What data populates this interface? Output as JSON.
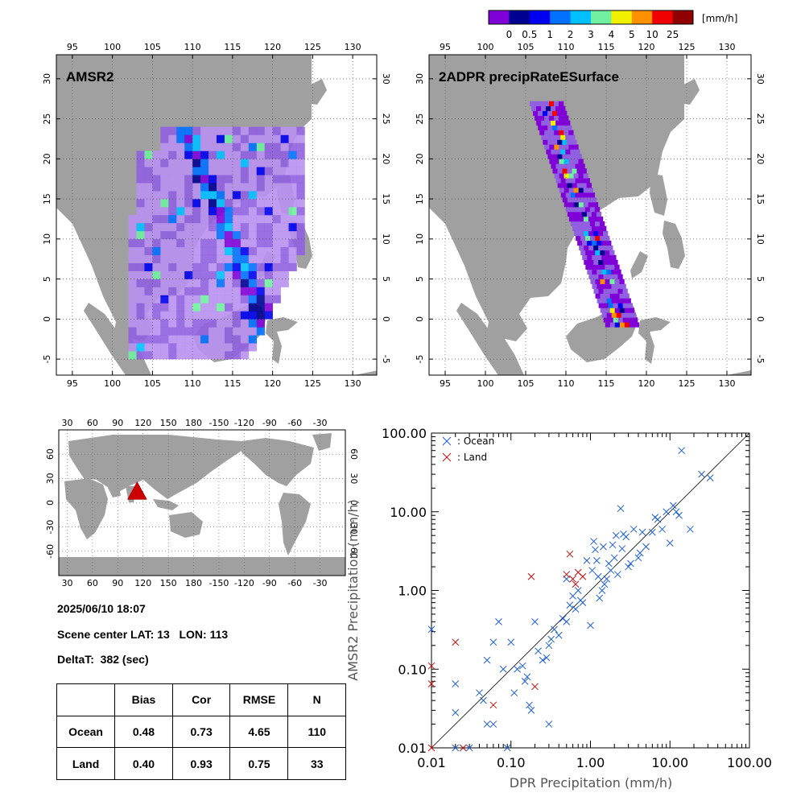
{
  "colorbar": {
    "unit": "[mm/h]",
    "colors": [
      "#8000d8",
      "#000090",
      "#0000f0",
      "#0070ff",
      "#00c0ff",
      "#70f0a0",
      "#f0f000",
      "#ff9000",
      "#f00000",
      "#900000"
    ],
    "labels": [
      "0",
      "0.5",
      "1",
      "2",
      "3",
      "4",
      "5",
      "10",
      "25"
    ]
  },
  "maps": [
    {
      "title": "AMSR2",
      "lon_ticks": [
        "95",
        "100",
        "105",
        "110",
        "115",
        "120",
        "125",
        "130"
      ],
      "lat_ticks": [
        "30",
        "25",
        "20",
        "15",
        "10",
        "5",
        "0",
        "-5"
      ],
      "lon_range": [
        93,
        133
      ],
      "lat_range": [
        -7,
        33
      ]
    },
    {
      "title": "2ADPR precipRateESurface",
      "lon_ticks": [
        "95",
        "100",
        "105",
        "110",
        "115",
        "120",
        "125",
        "130"
      ],
      "lat_ticks": [
        "30",
        "25",
        "20",
        "15",
        "10",
        "5",
        "0",
        "-5"
      ],
      "lon_range": [
        93,
        133
      ],
      "lat_range": [
        -7,
        33
      ]
    }
  ],
  "world_map": {
    "lon_ticks": [
      "30",
      "60",
      "90",
      "120",
      "150",
      "180",
      "-150",
      "-120",
      "-90",
      "-60",
      "-30"
    ],
    "lat_ticks": [
      "60",
      "30",
      "0",
      "-30",
      "-60"
    ],
    "marker_lat": 13,
    "marker_lon": 113,
    "marker_color": "#cc0000"
  },
  "info": {
    "datetime": "2025/06/10 18:07",
    "scene_center": "Scene center LAT: 13   LON: 113",
    "deltat": "DeltaT:  382 (sec)"
  },
  "stats_table": {
    "headers": [
      "",
      "Bias",
      "Cor",
      "RMSE",
      "N"
    ],
    "rows": [
      [
        "Ocean",
        "0.48",
        "0.73",
        "4.65",
        "110"
      ],
      [
        "Land",
        "0.40",
        "0.93",
        "0.75",
        "33"
      ]
    ]
  },
  "chart_data": {
    "type": "scatter",
    "xlabel": "DPR Precipitation (mm/h)",
    "ylabel": "AMSR2 Precipitation (mm/h)",
    "xscale": "log",
    "yscale": "log",
    "xlim": [
      0.01,
      100
    ],
    "ylim": [
      0.01,
      100
    ],
    "x_tick_labels": [
      "0.01",
      "0.10",
      "1.00",
      "10.00",
      "100.00"
    ],
    "y_tick_labels": [
      "0.01",
      "0.10",
      "1.00",
      "10.00",
      "100.00"
    ],
    "reference_line": "1:1",
    "legend_position": "top-left",
    "series": [
      {
        "name": ": Ocean",
        "color": "#1f5fd0",
        "points": [
          [
            0.01,
            0.32
          ],
          [
            0.02,
            0.065
          ],
          [
            0.02,
            0.028
          ],
          [
            0.02,
            0.01
          ],
          [
            0.03,
            0.01
          ],
          [
            0.04,
            0.05
          ],
          [
            0.045,
            0.04
          ],
          [
            0.05,
            0.13
          ],
          [
            0.05,
            0.02
          ],
          [
            0.06,
            0.02
          ],
          [
            0.06,
            0.22
          ],
          [
            0.07,
            0.4
          ],
          [
            0.08,
            0.1
          ],
          [
            0.09,
            0.01
          ],
          [
            0.1,
            0.22
          ],
          [
            0.11,
            0.05
          ],
          [
            0.12,
            0.1
          ],
          [
            0.14,
            0.11
          ],
          [
            0.15,
            0.07
          ],
          [
            0.16,
            0.08
          ],
          [
            0.17,
            0.035
          ],
          [
            0.18,
            0.03
          ],
          [
            0.2,
            0.4
          ],
          [
            0.22,
            0.17
          ],
          [
            0.25,
            0.13
          ],
          [
            0.28,
            0.14
          ],
          [
            0.3,
            0.2
          ],
          [
            0.32,
            0.24
          ],
          [
            0.3,
            0.02
          ],
          [
            0.35,
            0.32
          ],
          [
            0.4,
            0.27
          ],
          [
            0.45,
            0.44
          ],
          [
            0.5,
            0.4
          ],
          [
            0.5,
            1.4
          ],
          [
            0.55,
            0.65
          ],
          [
            0.6,
            0.85
          ],
          [
            0.65,
            0.58
          ],
          [
            0.7,
            1.0
          ],
          [
            0.75,
            0.75
          ],
          [
            0.8,
            0.7
          ],
          [
            0.9,
            2.4
          ],
          [
            1.0,
            0.36
          ],
          [
            1.05,
            1.8
          ],
          [
            1.1,
            4.2
          ],
          [
            1.15,
            3.3
          ],
          [
            1.2,
            2.4
          ],
          [
            1.25,
            1.5
          ],
          [
            1.3,
            0.8
          ],
          [
            1.4,
            1.0
          ],
          [
            1.45,
            3.6
          ],
          [
            1.5,
            1.2
          ],
          [
            1.6,
            1.4
          ],
          [
            1.7,
            2.2
          ],
          [
            1.8,
            1.8
          ],
          [
            1.9,
            3.8
          ],
          [
            2.0,
            2.6
          ],
          [
            2.1,
            5.0
          ],
          [
            2.2,
            1.6
          ],
          [
            2.4,
            11
          ],
          [
            2.5,
            3.4
          ],
          [
            2.6,
            5.2
          ],
          [
            2.8,
            4.8
          ],
          [
            3.0,
            2.0
          ],
          [
            3.2,
            2.2
          ],
          [
            3.5,
            6.0
          ],
          [
            4.0,
            2.6
          ],
          [
            4.2,
            3.0
          ],
          [
            4.5,
            5.5
          ],
          [
            5.0,
            3.6
          ],
          [
            6.0,
            5.5
          ],
          [
            6.5,
            8.5
          ],
          [
            7.0,
            8.0
          ],
          [
            8.0,
            6.0
          ],
          [
            9.0,
            10
          ],
          [
            10,
            4.0
          ],
          [
            11,
            12
          ],
          [
            12,
            10
          ],
          [
            13,
            9
          ],
          [
            14,
            60
          ],
          [
            18,
            6.0
          ],
          [
            25,
            30
          ],
          [
            32,
            27
          ]
        ]
      },
      {
        "name": ": Land",
        "color": "#c01010",
        "points": [
          [
            0.01,
            0.11
          ],
          [
            0.01,
            0.065
          ],
          [
            0.01,
            0.01
          ],
          [
            0.02,
            0.22
          ],
          [
            0.025,
            0.01
          ],
          [
            0.06,
            0.035
          ],
          [
            0.18,
            1.5
          ],
          [
            0.2,
            0.06
          ],
          [
            0.5,
            1.6
          ],
          [
            0.55,
            2.9
          ],
          [
            0.6,
            1.4
          ],
          [
            0.65,
            1.2
          ],
          [
            0.7,
            1.7
          ],
          [
            0.8,
            1.5
          ]
        ]
      }
    ]
  }
}
